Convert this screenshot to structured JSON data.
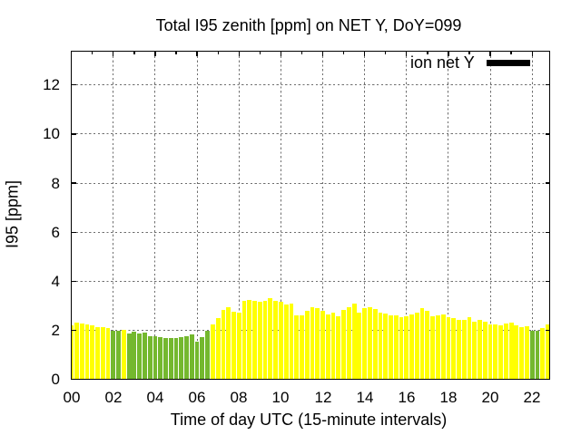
{
  "chart_data": {
    "type": "bar",
    "title": "Total I95 zenith [ppm] on NET Y, DoY=099",
    "xlabel": "Time of day UTC (15-minute intervals)",
    "ylabel": "I95 [ppm]",
    "legend": [
      {
        "label": "ion net Y",
        "swatch_color": "#000000"
      }
    ],
    "grid": true,
    "x_unit": "hours",
    "xlim": [
      0,
      22.8
    ],
    "ylim": [
      0,
      13.37
    ],
    "x_major_tick_hours": [
      0,
      2,
      4,
      6,
      8,
      10,
      12,
      14,
      16,
      18,
      20,
      22
    ],
    "x_tick_labels": [
      "00",
      "02",
      "04",
      "06",
      "08",
      "10",
      "12",
      "14",
      "16",
      "18",
      "20",
      "22"
    ],
    "x_minor_tick_hours": [
      1,
      3,
      5,
      7,
      9,
      11,
      13,
      15,
      17,
      19,
      21
    ],
    "y_major_ticks": [
      0,
      2,
      4,
      6,
      8,
      10,
      12
    ],
    "y_tick_labels": [
      "0",
      "2",
      "4",
      "6",
      "8",
      "10",
      "12"
    ],
    "bar_interval_minutes": 15,
    "colors": {
      "y": "#ffff00",
      "g": "#74b82e"
    },
    "points": [
      {
        "t": "00:00",
        "v": 2.21,
        "c": "y"
      },
      {
        "t": "00:15",
        "v": 2.33,
        "c": "y"
      },
      {
        "t": "00:30",
        "v": 2.29,
        "c": "y"
      },
      {
        "t": "00:45",
        "v": 2.26,
        "c": "y"
      },
      {
        "t": "01:00",
        "v": 2.21,
        "c": "y"
      },
      {
        "t": "01:15",
        "v": 2.13,
        "c": "y"
      },
      {
        "t": "01:30",
        "v": 2.15,
        "c": "y"
      },
      {
        "t": "01:45",
        "v": 2.1,
        "c": "y"
      },
      {
        "t": "02:00",
        "v": 2.0,
        "c": "g"
      },
      {
        "t": "02:15",
        "v": 1.98,
        "c": "g"
      },
      {
        "t": "02:30",
        "v": 2.03,
        "c": "y"
      },
      {
        "t": "02:45",
        "v": 1.88,
        "c": "g"
      },
      {
        "t": "03:00",
        "v": 1.96,
        "c": "g"
      },
      {
        "t": "03:15",
        "v": 1.89,
        "c": "g"
      },
      {
        "t": "03:30",
        "v": 1.93,
        "c": "g"
      },
      {
        "t": "03:45",
        "v": 1.78,
        "c": "g"
      },
      {
        "t": "04:00",
        "v": 1.78,
        "c": "g"
      },
      {
        "t": "04:15",
        "v": 1.73,
        "c": "g"
      },
      {
        "t": "04:30",
        "v": 1.68,
        "c": "g"
      },
      {
        "t": "04:45",
        "v": 1.68,
        "c": "g"
      },
      {
        "t": "05:00",
        "v": 1.7,
        "c": "g"
      },
      {
        "t": "05:15",
        "v": 1.72,
        "c": "g"
      },
      {
        "t": "05:30",
        "v": 1.76,
        "c": "g"
      },
      {
        "t": "05:45",
        "v": 1.84,
        "c": "g"
      },
      {
        "t": "06:00",
        "v": 1.54,
        "c": "g"
      },
      {
        "t": "06:15",
        "v": 1.72,
        "c": "g"
      },
      {
        "t": "06:30",
        "v": 1.98,
        "c": "g"
      },
      {
        "t": "06:45",
        "v": 2.26,
        "c": "y"
      },
      {
        "t": "07:00",
        "v": 2.51,
        "c": "y"
      },
      {
        "t": "07:15",
        "v": 2.82,
        "c": "y"
      },
      {
        "t": "07:30",
        "v": 2.94,
        "c": "y"
      },
      {
        "t": "07:45",
        "v": 2.78,
        "c": "y"
      },
      {
        "t": "08:00",
        "v": 2.73,
        "c": "y"
      },
      {
        "t": "08:15",
        "v": 3.22,
        "c": "y"
      },
      {
        "t": "08:30",
        "v": 3.24,
        "c": "y"
      },
      {
        "t": "08:45",
        "v": 3.21,
        "c": "y"
      },
      {
        "t": "09:00",
        "v": 3.17,
        "c": "y"
      },
      {
        "t": "09:15",
        "v": 3.19,
        "c": "y"
      },
      {
        "t": "09:30",
        "v": 3.32,
        "c": "y"
      },
      {
        "t": "09:45",
        "v": 3.22,
        "c": "y"
      },
      {
        "t": "10:00",
        "v": 3.16,
        "c": "y"
      },
      {
        "t": "10:15",
        "v": 3.06,
        "c": "y"
      },
      {
        "t": "10:30",
        "v": 3.1,
        "c": "y"
      },
      {
        "t": "10:45",
        "v": 2.6,
        "c": "y"
      },
      {
        "t": "11:00",
        "v": 2.6,
        "c": "y"
      },
      {
        "t": "11:15",
        "v": 2.79,
        "c": "y"
      },
      {
        "t": "11:30",
        "v": 2.94,
        "c": "y"
      },
      {
        "t": "11:45",
        "v": 2.91,
        "c": "y"
      },
      {
        "t": "12:00",
        "v": 2.8,
        "c": "y"
      },
      {
        "t": "12:15",
        "v": 2.66,
        "c": "y"
      },
      {
        "t": "12:30",
        "v": 2.71,
        "c": "y"
      },
      {
        "t": "12:45",
        "v": 2.58,
        "c": "y"
      },
      {
        "t": "13:00",
        "v": 2.82,
        "c": "y"
      },
      {
        "t": "13:15",
        "v": 2.95,
        "c": "y"
      },
      {
        "t": "13:30",
        "v": 3.11,
        "c": "y"
      },
      {
        "t": "13:45",
        "v": 2.73,
        "c": "y"
      },
      {
        "t": "14:00",
        "v": 2.91,
        "c": "y"
      },
      {
        "t": "14:15",
        "v": 2.95,
        "c": "y"
      },
      {
        "t": "14:30",
        "v": 2.88,
        "c": "y"
      },
      {
        "t": "14:45",
        "v": 2.71,
        "c": "y"
      },
      {
        "t": "15:00",
        "v": 2.67,
        "c": "y"
      },
      {
        "t": "15:15",
        "v": 2.61,
        "c": "y"
      },
      {
        "t": "15:30",
        "v": 2.61,
        "c": "y"
      },
      {
        "t": "15:45",
        "v": 2.54,
        "c": "y"
      },
      {
        "t": "16:00",
        "v": 2.57,
        "c": "y"
      },
      {
        "t": "16:15",
        "v": 2.65,
        "c": "y"
      },
      {
        "t": "16:30",
        "v": 2.73,
        "c": "y"
      },
      {
        "t": "16:45",
        "v": 2.91,
        "c": "y"
      },
      {
        "t": "17:00",
        "v": 2.79,
        "c": "y"
      },
      {
        "t": "17:15",
        "v": 2.58,
        "c": "y"
      },
      {
        "t": "17:30",
        "v": 2.6,
        "c": "y"
      },
      {
        "t": "17:45",
        "v": 2.64,
        "c": "y"
      },
      {
        "t": "18:00",
        "v": 2.53,
        "c": "y"
      },
      {
        "t": "18:15",
        "v": 2.49,
        "c": "y"
      },
      {
        "t": "18:30",
        "v": 2.42,
        "c": "y"
      },
      {
        "t": "18:45",
        "v": 2.42,
        "c": "y"
      },
      {
        "t": "19:00",
        "v": 2.53,
        "c": "y"
      },
      {
        "t": "19:15",
        "v": 2.37,
        "c": "y"
      },
      {
        "t": "19:30",
        "v": 2.42,
        "c": "y"
      },
      {
        "t": "19:45",
        "v": 2.34,
        "c": "y"
      },
      {
        "t": "20:00",
        "v": 2.25,
        "c": "y"
      },
      {
        "t": "20:15",
        "v": 2.26,
        "c": "y"
      },
      {
        "t": "20:30",
        "v": 2.2,
        "c": "y"
      },
      {
        "t": "20:45",
        "v": 2.29,
        "c": "y"
      },
      {
        "t": "21:00",
        "v": 2.31,
        "c": "y"
      },
      {
        "t": "21:15",
        "v": 2.2,
        "c": "y"
      },
      {
        "t": "21:30",
        "v": 2.13,
        "c": "y"
      },
      {
        "t": "21:45",
        "v": 2.18,
        "c": "y"
      },
      {
        "t": "22:00",
        "v": 2.0,
        "c": "g"
      },
      {
        "t": "22:15",
        "v": 1.99,
        "c": "g"
      },
      {
        "t": "22:30",
        "v": 2.09,
        "c": "y"
      },
      {
        "t": "22:45",
        "v": 2.25,
        "c": "y"
      }
    ]
  }
}
